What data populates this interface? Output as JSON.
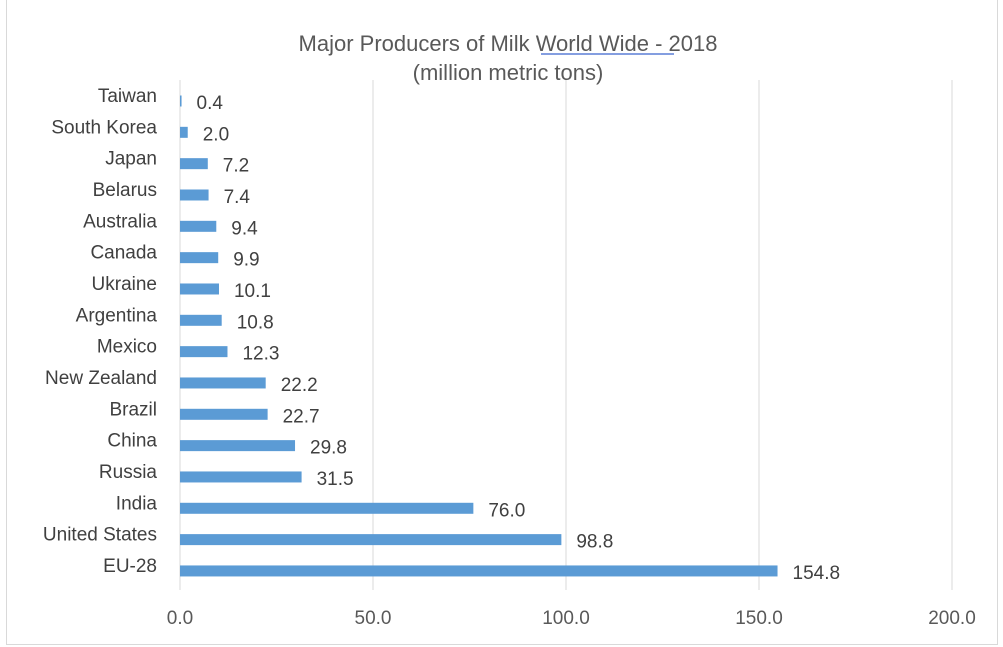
{
  "chart_data": {
    "type": "bar",
    "orientation": "horizontal",
    "title": "Major Producers of Milk World Wide - 2018",
    "subtitle": "(million metric tons)",
    "categories": [
      "Taiwan",
      "South Korea",
      "Japan",
      "Belarus",
      "Australia",
      "Canada",
      "Ukraine",
      "Argentina",
      "Mexico",
      "New Zealand",
      "Brazil",
      "China",
      "Russia",
      "India",
      "United States",
      "EU-28"
    ],
    "values": [
      0.4,
      2.0,
      7.2,
      7.4,
      9.4,
      9.9,
      10.1,
      10.8,
      12.3,
      22.2,
      22.7,
      29.8,
      31.5,
      76.0,
      98.8,
      154.8
    ],
    "data_labels": [
      "0.4",
      "2.0",
      "7.2",
      "7.4",
      "9.4",
      "9.9",
      "10.1",
      "10.8",
      "12.3",
      "22.2",
      "22.7",
      "29.8",
      "31.5",
      "76.0",
      "98.8",
      "154.8"
    ],
    "xlim": [
      0,
      200
    ],
    "xticks": [
      0,
      50,
      100,
      150,
      200
    ],
    "xtick_labels": [
      "0.0",
      "50.0",
      "100.0",
      "150.0",
      "200.0"
    ],
    "xlabel": "",
    "ylabel": "",
    "grid": "vertical",
    "legend": "none",
    "bar_color": "#5b9bd5"
  }
}
